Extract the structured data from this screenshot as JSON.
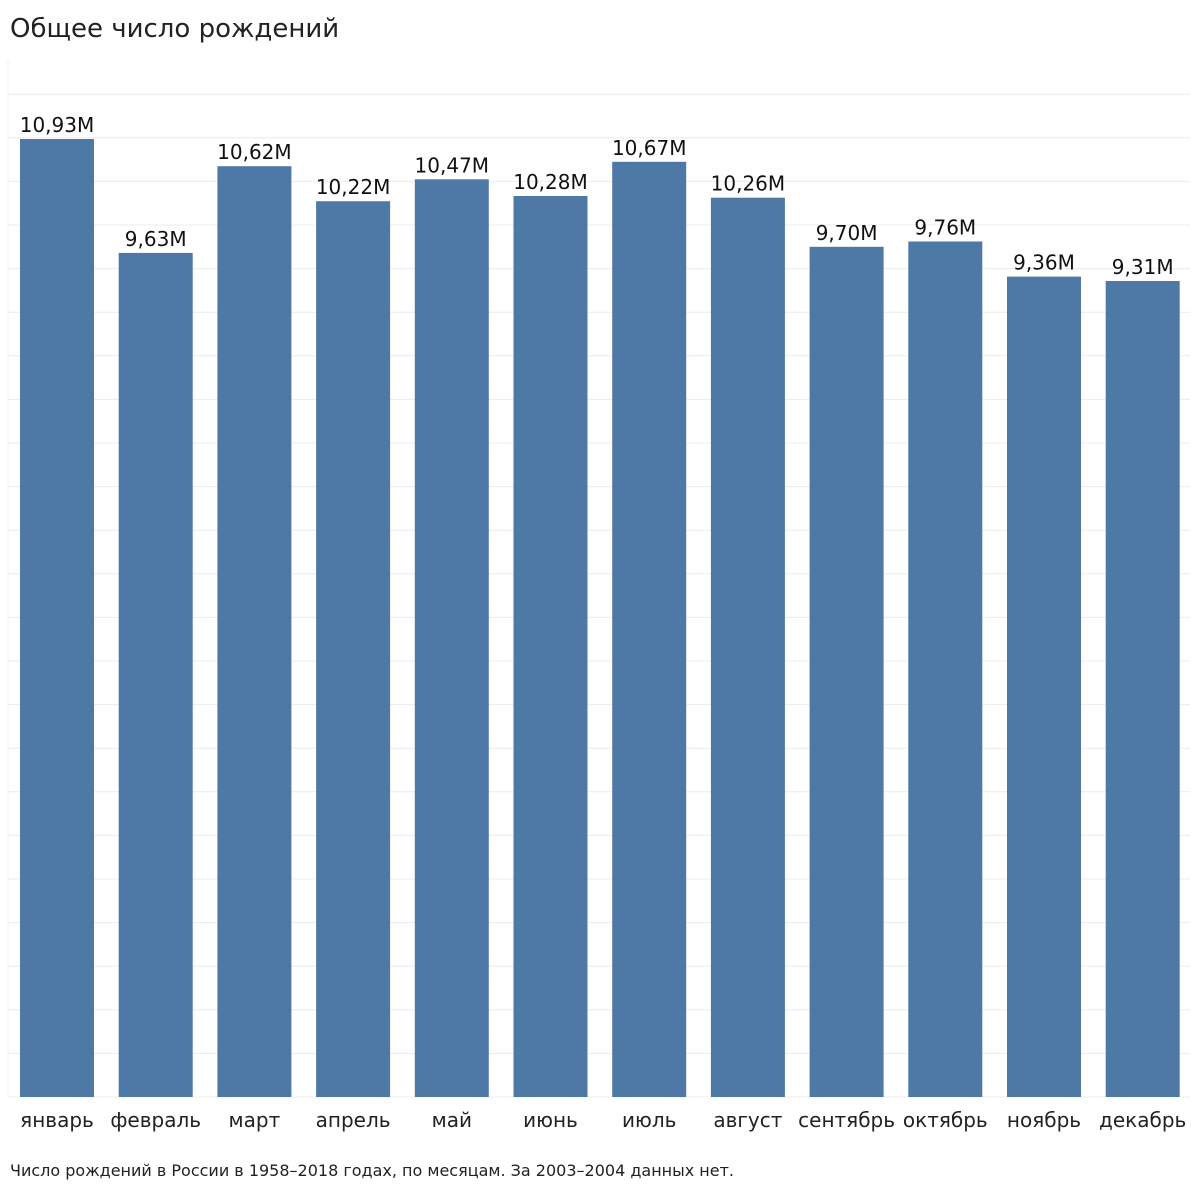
{
  "chart_data": {
    "type": "bar",
    "title": "Общее число рождений",
    "categories": [
      "январь",
      "февраль",
      "март",
      "апрель",
      "май",
      "июнь",
      "июль",
      "август",
      "сентябрь",
      "октябрь",
      "ноябрь",
      "декабрь"
    ],
    "values": [
      10.93,
      9.63,
      10.62,
      10.22,
      10.47,
      10.28,
      10.67,
      10.26,
      9.7,
      9.76,
      9.36,
      9.31
    ],
    "data_labels": [
      "10,93M",
      "9,63M",
      "10,62M",
      "10,22M",
      "10,47M",
      "10,28M",
      "10,67M",
      "10,26M",
      "9,70M",
      "9,76M",
      "9,36M",
      "9,31M"
    ],
    "xlabel": "",
    "ylabel": "",
    "ylim": [
      0,
      11.5
    ],
    "grid": true,
    "bar_color": "#4e79a7",
    "grid_color": "#ececec",
    "caption": "Число рождений в России в 1958–2018 годах, по месяцам. За 2003–2004 данных нет."
  }
}
